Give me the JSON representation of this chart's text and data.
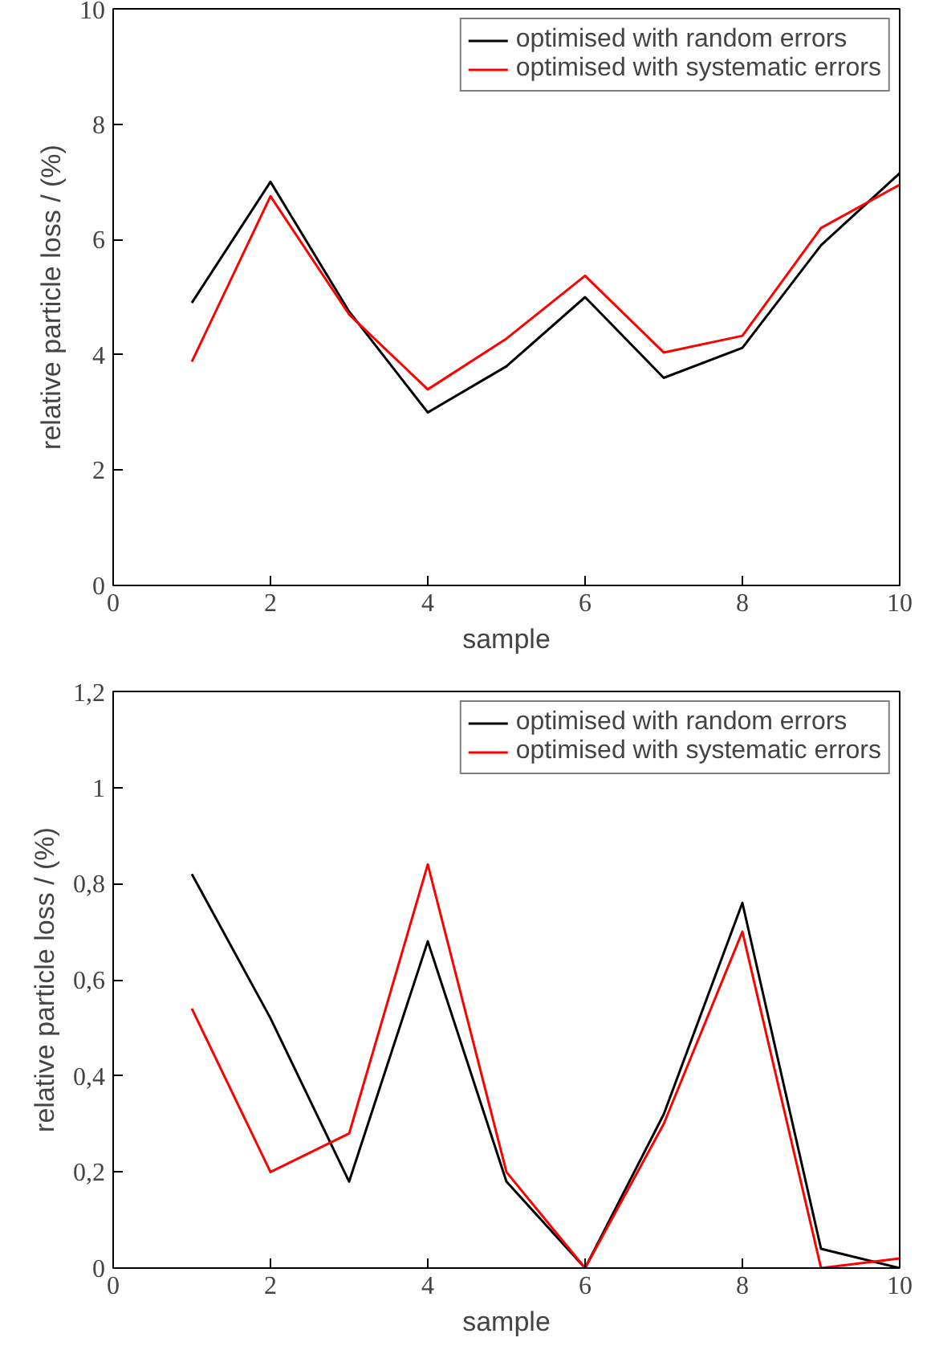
{
  "chart_data": [
    {
      "type": "line",
      "xlabel": "sample",
      "ylabel": "relative particle loss / (%)",
      "x": [
        1,
        2,
        3,
        4,
        5,
        6,
        7,
        8,
        9,
        10
      ],
      "series": [
        {
          "name": "optimised with random errors",
          "color": "#000000",
          "values": [
            4.9,
            7.0,
            4.75,
            3.0,
            3.8,
            5.0,
            3.6,
            4.12,
            5.9,
            7.15
          ]
        },
        {
          "name": "optimised with systematic errors",
          "color": "#ff0000",
          "values": [
            3.88,
            6.75,
            4.7,
            3.4,
            4.28,
            5.37,
            4.04,
            4.33,
            6.2,
            6.95
          ]
        }
      ],
      "xlim": [
        0,
        10
      ],
      "xticks": [
        0,
        2,
        4,
        6,
        8,
        10
      ],
      "ylim": [
        0,
        10
      ],
      "yticks": [
        0,
        2,
        4,
        6,
        8,
        10
      ],
      "grid": false,
      "legend": "top right",
      "marker": "none",
      "line_style": "solid"
    },
    {
      "type": "line",
      "xlabel": "sample",
      "ylabel": "relative particle loss / (%)",
      "x": [
        1,
        2,
        3,
        4,
        5,
        6,
        7,
        8,
        9,
        10
      ],
      "series": [
        {
          "name": "optimised with random errors",
          "color": "#000000",
          "values": [
            0.82,
            0.52,
            0.18,
            0.68,
            0.18,
            0.0,
            0.32,
            0.76,
            0.04,
            0.0
          ]
        },
        {
          "name": "optimised with systematic errors",
          "color": "#ff0000",
          "values": [
            0.54,
            0.2,
            0.28,
            0.84,
            0.2,
            0.0,
            0.3,
            0.7,
            0.0,
            0.02
          ]
        }
      ],
      "xlim": [
        0,
        10
      ],
      "xticks": [
        0,
        2,
        4,
        6,
        8,
        10
      ],
      "ylim": [
        0,
        1.2
      ],
      "yticks": [
        0,
        {
          "value": 0.2,
          "label": "0,2"
        },
        {
          "value": 0.4,
          "label": "0,4"
        },
        {
          "value": 0.6,
          "label": "0,6"
        },
        {
          "value": 0.8,
          "label": "0,8"
        },
        1,
        {
          "value": 1.2,
          "label": "1,2"
        }
      ],
      "grid": false,
      "legend": "top right",
      "marker": "none",
      "line_style": "solid"
    }
  ]
}
